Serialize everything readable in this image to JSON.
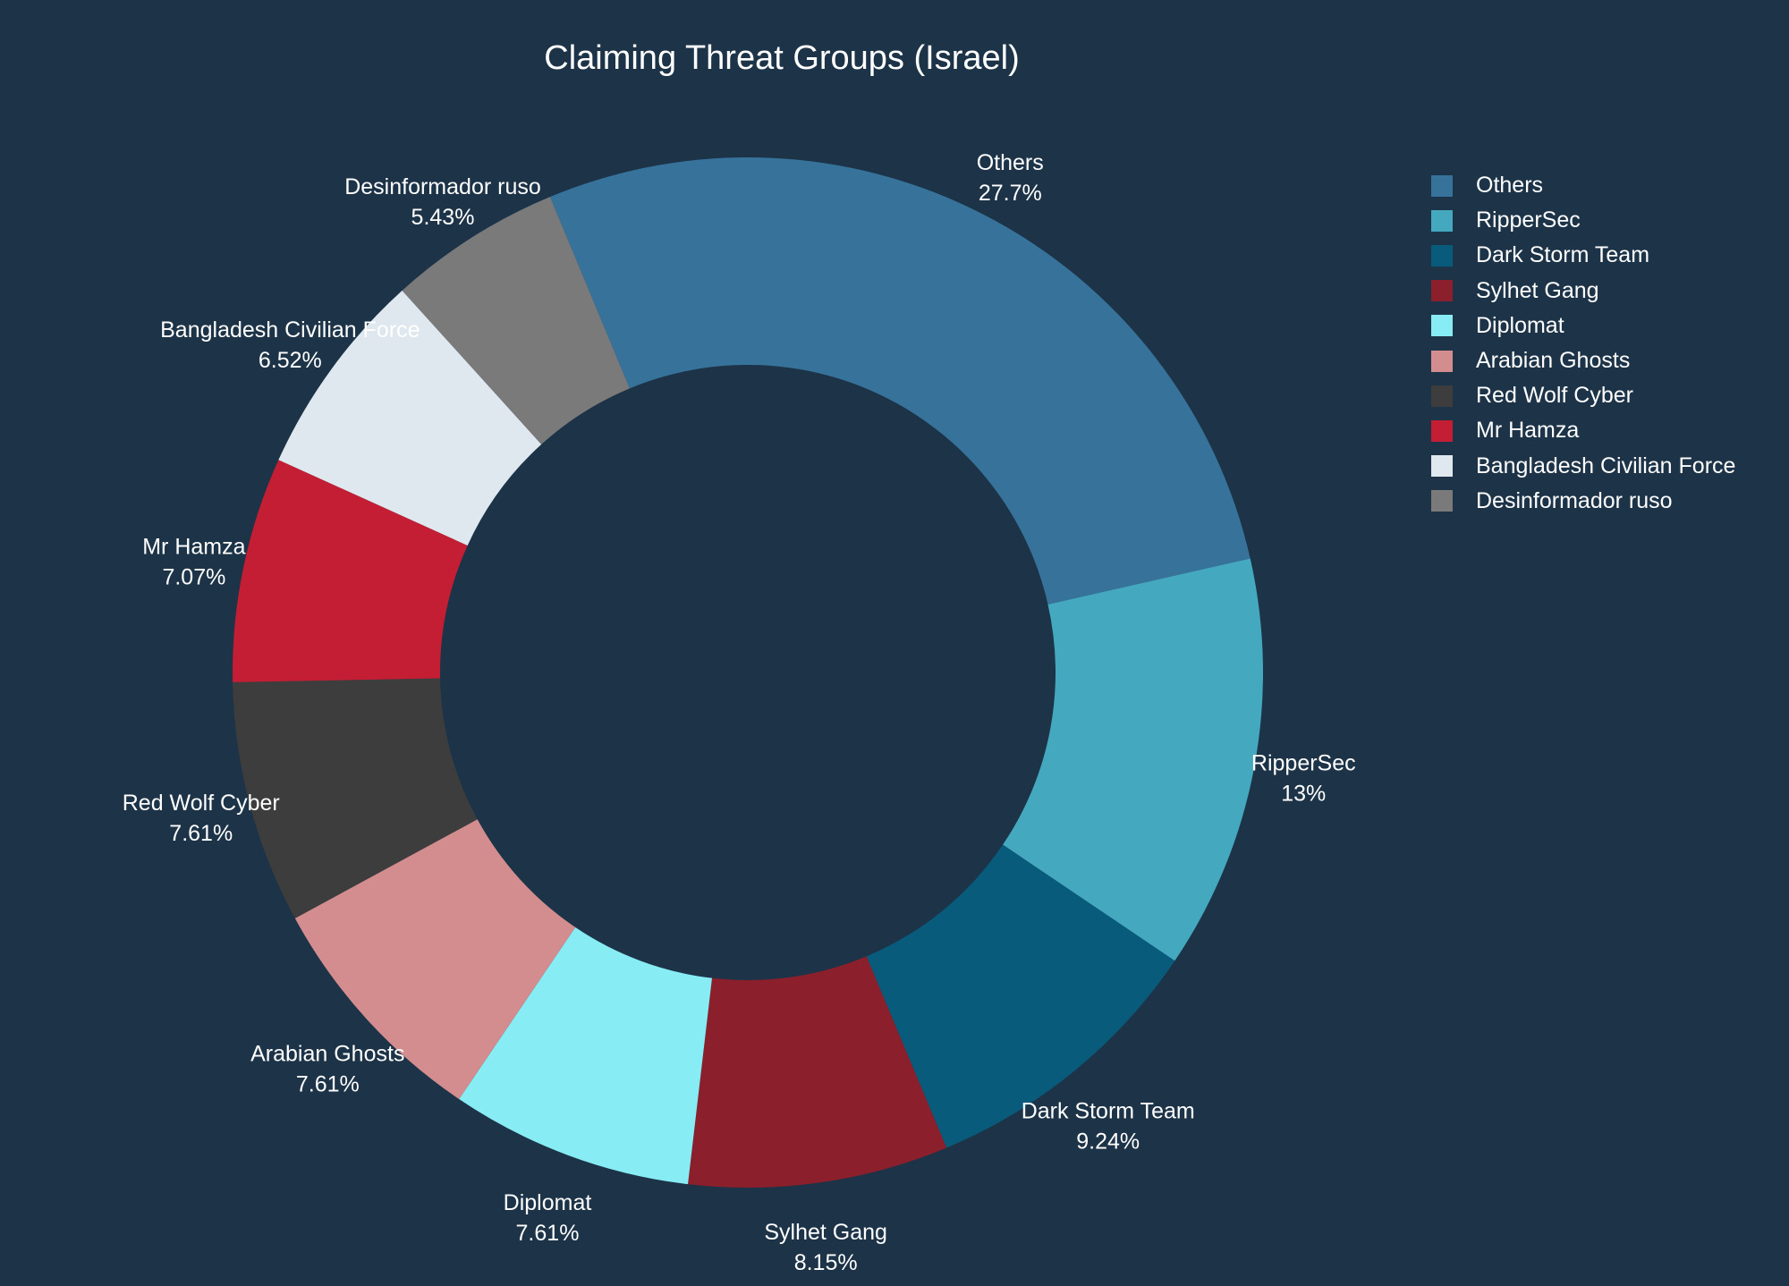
{
  "chart_data": {
    "type": "pie",
    "hole": true,
    "title": "Claiming Threat Groups (Israel)",
    "legend_position": "top-right",
    "slices": [
      {
        "label": "Others",
        "value": 27.7,
        "text": "27.7%",
        "color": "#37729a"
      },
      {
        "label": "RipperSec",
        "value": 13,
        "text": "13%",
        "color": "#44a8bf"
      },
      {
        "label": "Dark Storm Team",
        "value": 9.24,
        "text": "9.24%",
        "color": "#095b7b"
      },
      {
        "label": "Sylhet Gang",
        "value": 8.15,
        "text": "8.15%",
        "color": "#8b1f2b"
      },
      {
        "label": "Diplomat",
        "value": 7.61,
        "text": "7.61%",
        "color": "#87ecf3"
      },
      {
        "label": "Arabian Ghosts",
        "value": 7.61,
        "text": "7.61%",
        "color": "#d38d8f"
      },
      {
        "label": "Red Wolf Cyber",
        "value": 7.61,
        "text": "7.61%",
        "color": "#3d3d3d"
      },
      {
        "label": "Mr Hamza",
        "value": 7.07,
        "text": "7.07%",
        "color": "#c31e33"
      },
      {
        "label": "Bangladesh Civilian Force",
        "value": 6.52,
        "text": "6.52%",
        "color": "#dfe8ef"
      },
      {
        "label": "Desinformador ruso",
        "value": 5.43,
        "text": "5.43%",
        "color": "#7a7a7a"
      }
    ]
  }
}
